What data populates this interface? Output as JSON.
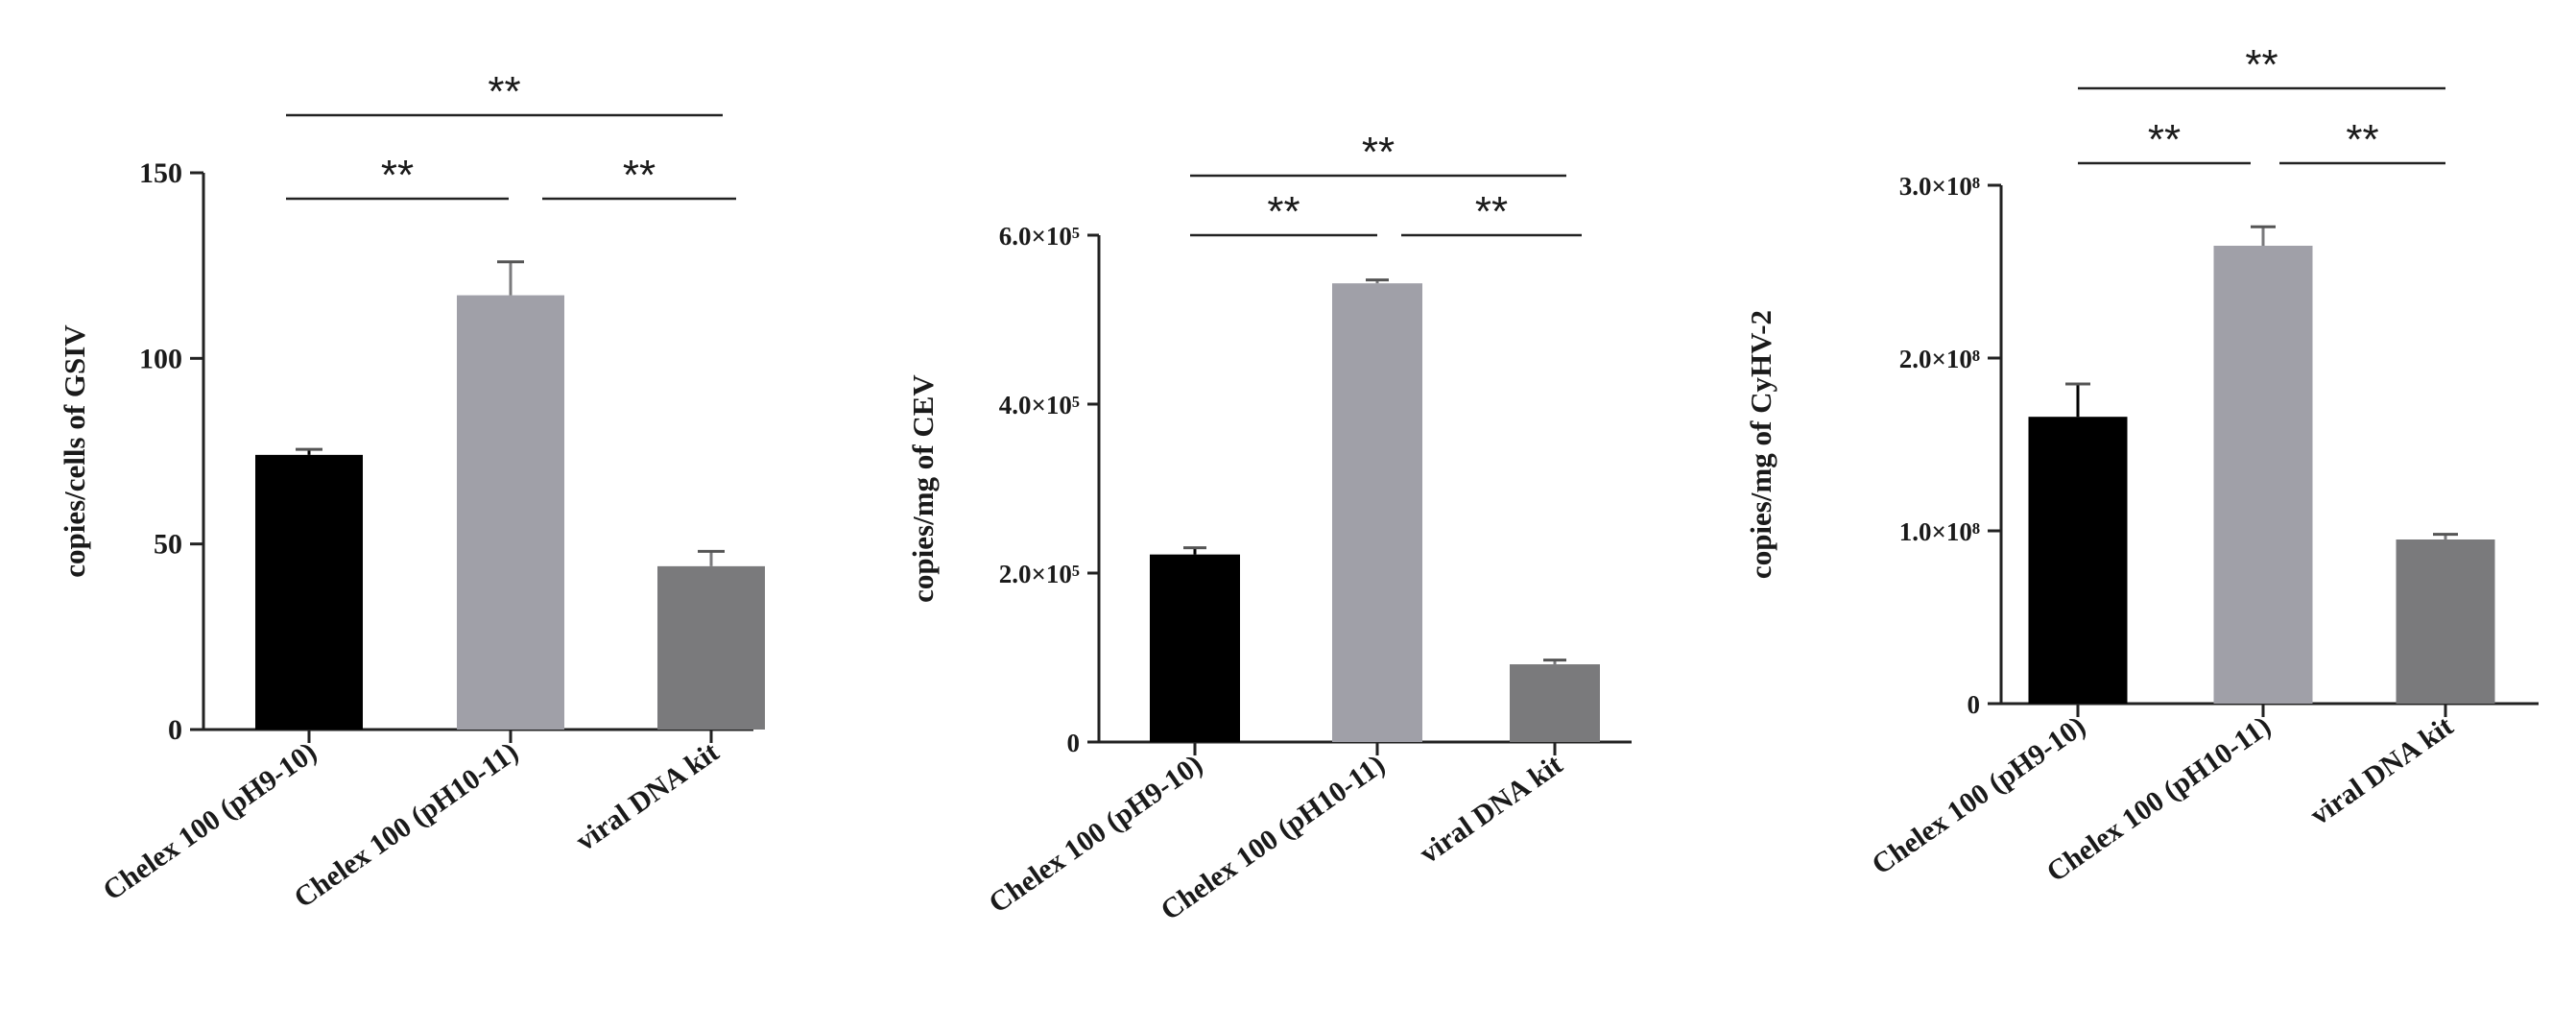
{
  "chart_data": [
    {
      "type": "bar",
      "ylabel": "copies/cells of GSIV",
      "ylim": [
        0,
        150
      ],
      "yticks": [
        "0",
        "50",
        "100",
        "150"
      ],
      "categories": [
        "Chelex 100 (pH9-10)",
        "Chelex 100 (pH10-11)",
        "viral DNA kit"
      ],
      "values": [
        74,
        117,
        44
      ],
      "errors": [
        1.5,
        9,
        4
      ],
      "bar_colors": [
        "#000000",
        "#a0a0a8",
        "#7a7a7c"
      ],
      "significance": [
        {
          "from": 0,
          "to": 1,
          "label": "**"
        },
        {
          "from": 1,
          "to": 2,
          "label": "**"
        },
        {
          "from": 0,
          "to": 2,
          "label": "**"
        }
      ]
    },
    {
      "type": "bar",
      "ylabel": "copies/mg of CEV",
      "ylim": [
        0,
        600000
      ],
      "yticks": [
        "0",
        "2.0×10⁵",
        "4.0×10⁵",
        "6.0×10⁵"
      ],
      "categories": [
        "Chelex 100 (pH9-10)",
        "Chelex 100 (pH10-11)",
        "viral DNA kit"
      ],
      "values": [
        222000,
        543000,
        92000
      ],
      "errors": [
        8000,
        4000,
        5000
      ],
      "bar_colors": [
        "#000000",
        "#a0a0a8",
        "#7a7a7c"
      ],
      "significance": [
        {
          "from": 0,
          "to": 1,
          "label": "**"
        },
        {
          "from": 1,
          "to": 2,
          "label": "**"
        },
        {
          "from": 0,
          "to": 2,
          "label": "**"
        }
      ]
    },
    {
      "type": "bar",
      "ylabel": "copies/mg of CyHV-2",
      "ylim": [
        0,
        300000000
      ],
      "yticks": [
        "0",
        "1.0×10⁸",
        "2.0×10⁸",
        "3.0×10⁸"
      ],
      "categories": [
        "Chelex 100 (pH9-10)",
        "Chelex 100 (pH10-11)",
        "viral DNA kit"
      ],
      "values": [
        166000000,
        265000000,
        95000000
      ],
      "errors": [
        19000000,
        11000000,
        3000000
      ],
      "bar_colors": [
        "#000000",
        "#a0a0a8",
        "#7a7a7c"
      ],
      "significance": [
        {
          "from": 0,
          "to": 1,
          "label": "**"
        },
        {
          "from": 1,
          "to": 2,
          "label": "**"
        },
        {
          "from": 0,
          "to": 2,
          "label": "**"
        }
      ]
    }
  ]
}
